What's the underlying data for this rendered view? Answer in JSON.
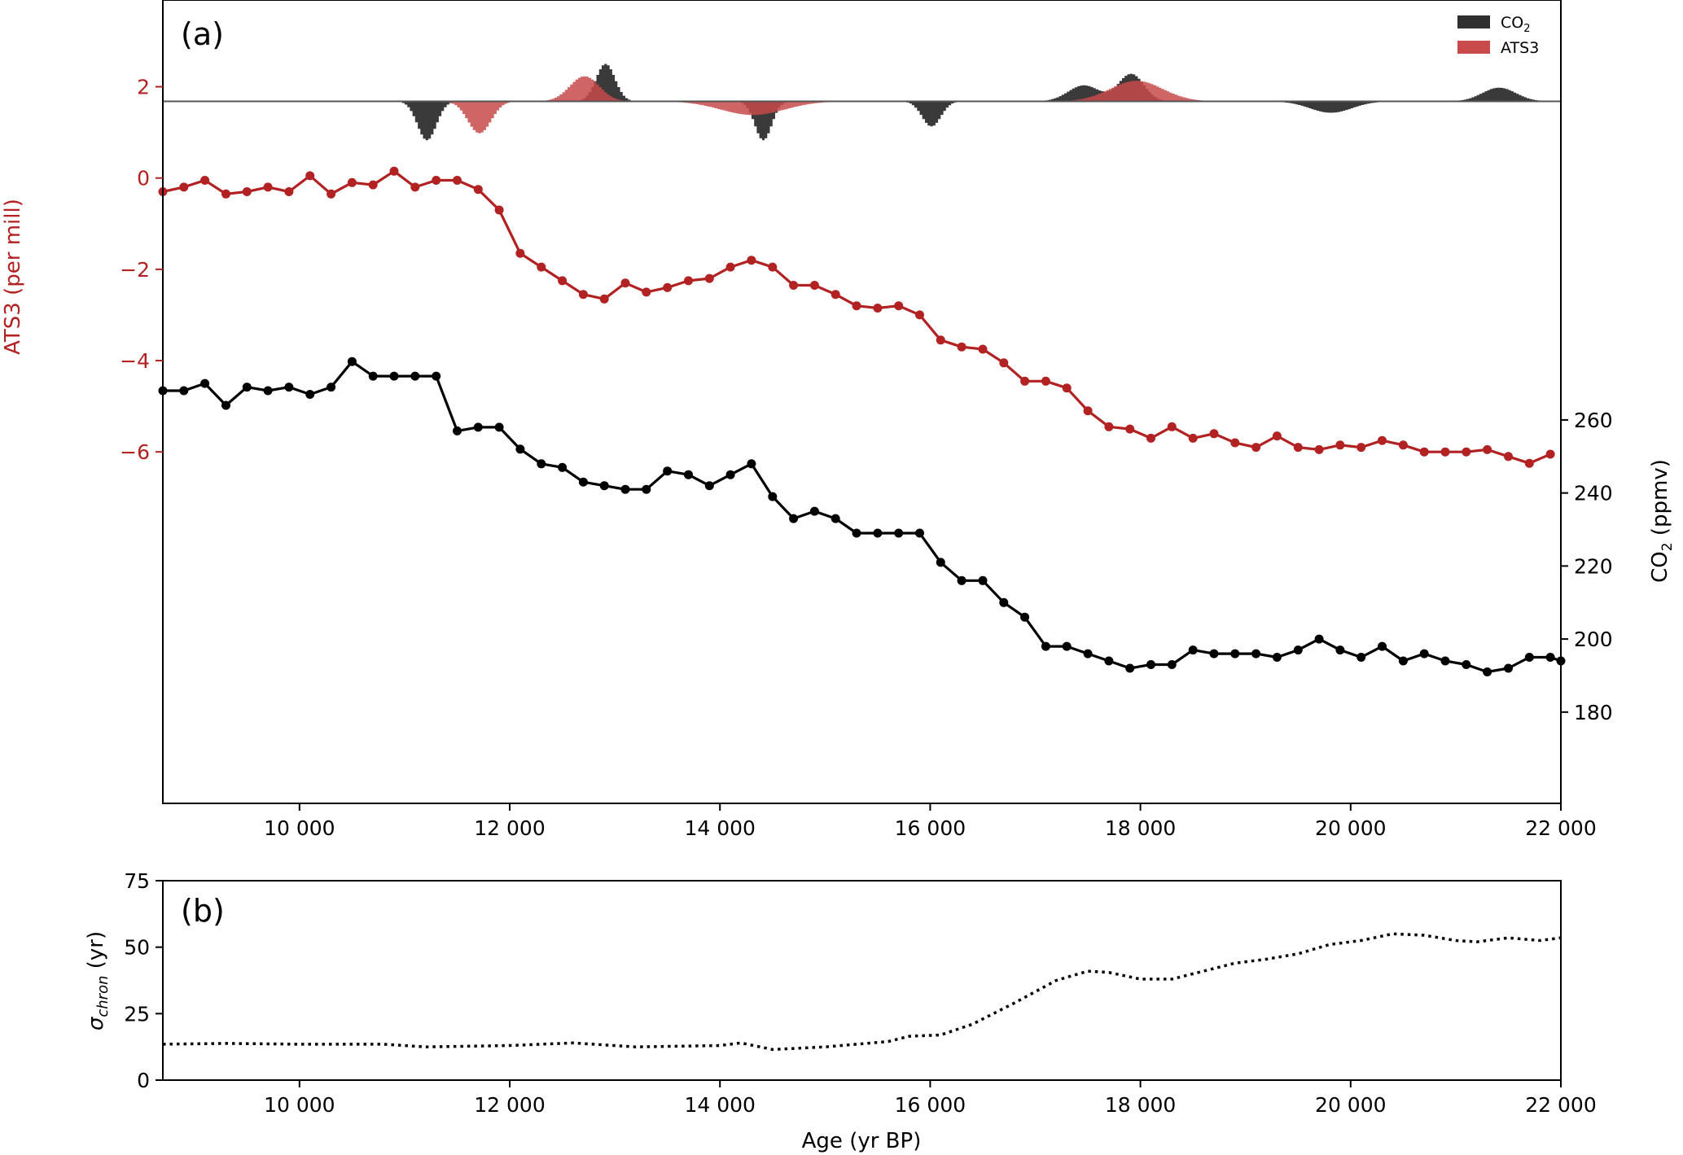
{
  "colors": {
    "ats3": "#b22222",
    "co2": "#000000",
    "hist_co2": "#2f2f2f",
    "hist_ats3": "#c84a4a",
    "overlap": "#8b1a1a"
  },
  "chart_data": [
    {
      "panel_label": "(a)",
      "type": "line",
      "xlim": [
        8700,
        22000
      ],
      "xticks": [
        10000,
        12000,
        14000,
        16000,
        18000,
        20000,
        22000
      ],
      "xtick_labels": [
        "10 000",
        "12 000",
        "14 000",
        "16 000",
        "18 000",
        "20 000",
        "22 000"
      ],
      "left_axis": {
        "label": "ATS3 (per mill)",
        "ylim": [
          -13.7,
          3.9
        ],
        "ticks": [
          2,
          0,
          -2,
          -4,
          -6
        ],
        "tick_labels": [
          "2",
          "0",
          "−2",
          "−4",
          "−6"
        ]
      },
      "right_axis": {
        "label_main": "CO",
        "label_sub": "2",
        "label_suffix": " (ppmv)",
        "ylim": [
          155,
          375
        ],
        "ticks": [
          180,
          200,
          220,
          240,
          260
        ],
        "tick_labels": [
          "180",
          "200",
          "220",
          "240",
          "260"
        ]
      },
      "series": [
        {
          "name": "ATS3",
          "axis": "left",
          "x": [
            8700,
            8900,
            9100,
            9300,
            9500,
            9700,
            9900,
            10100,
            10300,
            10500,
            10700,
            10900,
            11100,
            11300,
            11500,
            11700,
            11900,
            12100,
            12300,
            12500,
            12700,
            12900,
            13100,
            13300,
            13500,
            13700,
            13900,
            14100,
            14300,
            14500,
            14700,
            14900,
            15100,
            15300,
            15500,
            15700,
            15900,
            16100,
            16300,
            16500,
            16700,
            16900,
            17100,
            17300,
            17500,
            17700,
            17900,
            18100,
            18300,
            18500,
            18700,
            18900,
            19100,
            19300,
            19500,
            19700,
            19900,
            20100,
            20300,
            20500,
            20700,
            20900,
            21100,
            21300,
            21500,
            21700,
            21900
          ],
          "values": [
            -0.3,
            -0.2,
            -0.05,
            -0.35,
            -0.3,
            -0.2,
            -0.3,
            0.05,
            -0.35,
            -0.1,
            -0.15,
            0.15,
            -0.2,
            -0.05,
            -0.05,
            -0.25,
            -0.7,
            -1.65,
            -1.95,
            -2.25,
            -2.55,
            -2.65,
            -2.3,
            -2.5,
            -2.4,
            -2.25,
            -2.2,
            -1.95,
            -1.8,
            -1.95,
            -2.35,
            -2.35,
            -2.55,
            -2.8,
            -2.85,
            -2.8,
            -3.0,
            -3.55,
            -3.7,
            -3.75,
            -4.05,
            -4.45,
            -4.45,
            -4.6,
            -5.1,
            -5.45,
            -5.5,
            -5.7,
            -5.45,
            -5.7,
            -5.6,
            -5.8,
            -5.9,
            -5.65,
            -5.9,
            -5.95,
            -5.85,
            -5.9,
            -5.75,
            -5.85,
            -6.0,
            -6.0,
            -6.0,
            -5.95,
            -6.1,
            -6.25,
            -6.05
          ]
        },
        {
          "name": "CO₂",
          "axis": "right",
          "x": [
            8700,
            8900,
            9100,
            9300,
            9500,
            9700,
            9900,
            10100,
            10300,
            10500,
            10700,
            10900,
            11100,
            11300,
            11500,
            11700,
            11900,
            12100,
            12300,
            12500,
            12700,
            12900,
            13100,
            13300,
            13500,
            13700,
            13900,
            14100,
            14300,
            14500,
            14700,
            14900,
            15100,
            15300,
            15500,
            15700,
            15900,
            16100,
            16300,
            16500,
            16700,
            16900,
            17100,
            17300,
            17500,
            17700,
            17900,
            18100,
            18300,
            18500,
            18700,
            18900,
            19100,
            19300,
            19500,
            19700,
            19900,
            20100,
            20300,
            20500,
            20700,
            20900,
            21100,
            21300,
            21500,
            21700,
            21900,
            22000
          ],
          "values": [
            268,
            268,
            270,
            264,
            269,
            268,
            269,
            267,
            269,
            276,
            272,
            272,
            272,
            272,
            257,
            258,
            258,
            252,
            248,
            247,
            243,
            242,
            241,
            241,
            246,
            245,
            242,
            245,
            248,
            239,
            233,
            235,
            233,
            229,
            229,
            229,
            229,
            221,
            216,
            216,
            210,
            206,
            198,
            198,
            196,
            194,
            192,
            193,
            193,
            197,
            196,
            196,
            196,
            195,
            197,
            200,
            197,
            195,
            198,
            194,
            196,
            194,
            193,
            191,
            192,
            195,
            195,
            194
          ]
        }
      ],
      "legend": {
        "position": "top-right",
        "entries": [
          {
            "label_main": "CO",
            "label_sub": "2",
            "color": "#2f2f2f"
          },
          {
            "label_main": "ATS3",
            "label_sub": "",
            "color": "#c84a4a"
          }
        ]
      },
      "histograms": {
        "baseline_left": 1.68,
        "co2": {
          "x": [
            11200,
            12900,
            14400,
            16000,
            17450,
            17900,
            19800,
            21400
          ],
          "amplitude": [
            -0.85,
            0.82,
            -0.85,
            -0.55,
            0.35,
            0.6,
            -0.25,
            0.3
          ],
          "width": [
            90,
            90,
            80,
            90,
            150,
            120,
            200,
            160
          ]
        },
        "ats3": {
          "x": [
            11700,
            12700,
            14300,
            17950
          ],
          "amplitude": [
            -0.7,
            0.55,
            -0.3,
            0.45
          ],
          "width": [
            110,
            140,
            300,
            250
          ]
        }
      }
    },
    {
      "panel_label": "(b)",
      "type": "line",
      "xlim": [
        8700,
        22000
      ],
      "xticks": [
        10000,
        12000,
        14000,
        16000,
        18000,
        20000,
        22000
      ],
      "xtick_labels": [
        "10 000",
        "12 000",
        "14 000",
        "16 000",
        "18 000",
        "20 000",
        "22 000"
      ],
      "xlabel": "Age (yr BP)",
      "ylabel_main": "σ",
      "ylabel_sub": "chron",
      "ylabel_suffix": " (yr)",
      "ylim": [
        0,
        75
      ],
      "yticks": [
        0,
        25,
        50,
        75
      ],
      "ytick_labels": [
        "0",
        "25",
        "50",
        "75"
      ],
      "series": [
        {
          "style": "dotted",
          "x": [
            8700,
            9300,
            10000,
            10800,
            11200,
            12000,
            12600,
            13200,
            14000,
            14200,
            14500,
            15000,
            15600,
            15800,
            16100,
            16400,
            16800,
            17200,
            17500,
            17700,
            18000,
            18300,
            18600,
            18900,
            19200,
            19500,
            19800,
            20100,
            20400,
            20700,
            21000,
            21200,
            21500,
            21800,
            22000
          ],
          "values": [
            13.5,
            13.8,
            13.5,
            13.5,
            12.5,
            13.0,
            14.0,
            12.5,
            13.0,
            14.0,
            11.5,
            12.5,
            14.5,
            16.5,
            17.0,
            21.0,
            29.0,
            37.5,
            41.0,
            40.5,
            38.0,
            38.0,
            41.0,
            44.0,
            45.5,
            47.5,
            51.0,
            52.5,
            55.0,
            54.5,
            52.5,
            52.0,
            53.5,
            52.5,
            53.5
          ]
        }
      ]
    }
  ]
}
